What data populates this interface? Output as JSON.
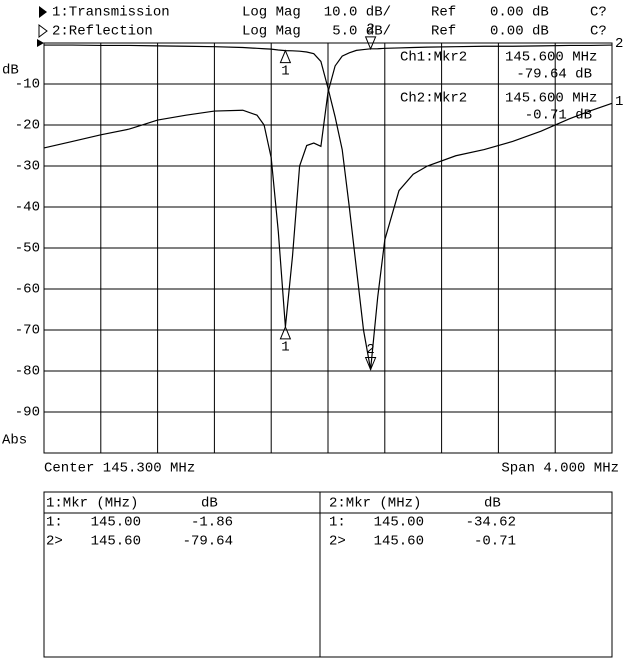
{
  "chart_data": {
    "type": "line",
    "header": [
      {
        "name": "1:Transmission",
        "format": "Log Mag",
        "scale": "10.0 dB/",
        "ref_label": "Ref",
        "ref": "0.00 dB",
        "status": "C?"
      },
      {
        "name": "2:Reflection",
        "format": "Log Mag",
        "scale": "5.0 dB/",
        "ref_label": "Ref",
        "ref": "0.00 dB",
        "status": "C?"
      }
    ],
    "y_label_top": "dB",
    "y_label_bottom": "Abs",
    "center": "Center 145.300 MHz",
    "span": "Span 4.000 MHz",
    "xlim": [
      143.3,
      147.3
    ],
    "ylim": [
      -100,
      0
    ],
    "y2lim": [
      -50,
      0
    ],
    "yticks": [
      -10,
      -20,
      -30,
      -40,
      -50,
      -60,
      -70,
      -80,
      -90
    ],
    "grid": true,
    "x": [
      143.3,
      143.5,
      143.7,
      143.9,
      144.1,
      144.3,
      144.5,
      144.7,
      144.8,
      144.85,
      144.9,
      144.95,
      145.0,
      145.05,
      145.1,
      145.15,
      145.2,
      145.25,
      145.3,
      145.35,
      145.4,
      145.45,
      145.5,
      145.55,
      145.6,
      145.65,
      145.7,
      145.8,
      145.9,
      146.0,
      146.2,
      146.4,
      146.6,
      146.8,
      147.0,
      147.15,
      147.3
    ],
    "series": [
      {
        "name": "1:Transmission",
        "label": "1",
        "color": "#000000",
        "values": [
          -0.5,
          -0.5,
          -0.6,
          -0.6,
          -0.7,
          -0.8,
          -0.9,
          -1.1,
          -1.3,
          -1.4,
          -1.5,
          -1.7,
          -1.86,
          -1.9,
          -2.0,
          -2.2,
          -2.6,
          -4.5,
          -11,
          -18,
          -26,
          -40,
          -55,
          -70,
          -79.64,
          -62,
          -48,
          -36,
          -32,
          -30,
          -27.5,
          -26,
          -24,
          -21.5,
          -18.5,
          -16.5,
          -14.7
        ]
      },
      {
        "name": "2:Reflection",
        "label": "2",
        "color": "#000000",
        "axis": "y2",
        "values": [
          -12.8,
          -12,
          -11.2,
          -10.5,
          -9.4,
          -8.8,
          -8.3,
          -8.2,
          -8.8,
          -10,
          -14,
          -23,
          -34.62,
          -26,
          -15,
          -12.5,
          -12.2,
          -12.6,
          -6,
          -2.8,
          -1.6,
          -1.2,
          -0.9,
          -0.8,
          -0.71,
          -0.7,
          -0.65,
          -0.6,
          -0.55,
          -0.5,
          -0.45,
          -0.4,
          -0.4,
          -0.35,
          -0.3,
          -0.3,
          -0.25
        ]
      }
    ],
    "markers": [
      {
        "label": "1",
        "x": 145.0
      },
      {
        "label": "2",
        "x": 145.6
      }
    ],
    "readouts": [
      {
        "channel": "Ch1:Mkr2",
        "freq": "145.600 MHz",
        "value": "-79.64 dB"
      },
      {
        "channel": "Ch2:Mkr2",
        "freq": "145.600 MHz",
        "value": "-0.71 dB"
      }
    ]
  },
  "marker_table": {
    "panels": [
      {
        "title": "1:Mkr (MHz)",
        "unit": "dB",
        "rows": [
          [
            "1:",
            "145.00",
            "-1.86"
          ],
          [
            "2>",
            "145.60",
            "-79.64"
          ]
        ]
      },
      {
        "title": "2:Mkr (MHz)",
        "unit": "dB",
        "rows": [
          [
            "1:",
            "145.00",
            "-34.62"
          ],
          [
            "2>",
            "145.60",
            "-0.71"
          ]
        ]
      }
    ]
  }
}
